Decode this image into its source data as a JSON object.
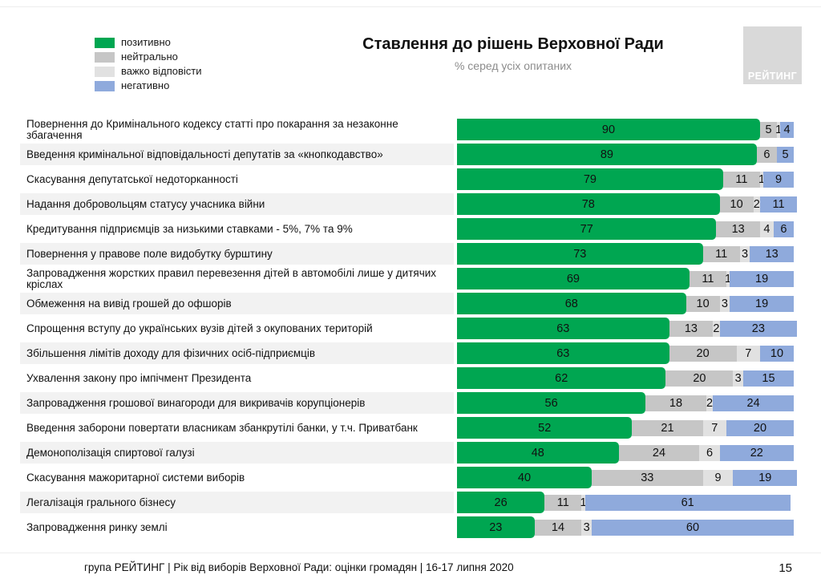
{
  "header": {
    "title": "Ставлення до рішень Верховної Ради",
    "subtitle": "% серед усіх опитаних",
    "logo_text": "РЕЙТИНГ"
  },
  "chart_data": {
    "type": "bar",
    "orientation": "horizontal",
    "stacked": true,
    "unit": "%",
    "xlim": [
      0,
      100
    ],
    "legend_position": "top-left",
    "categories": [
      "Повернення до Кримінального кодексу статті про покарання за незаконне збагачення",
      "Введення кримінальної відповідальності депутатів за «кнопкодавство»",
      "Скасування депутатської недоторканності",
      "Надання добровольцям статусу учасника війни",
      "Кредитування підприємців за низькими ставками - 5%, 7% та 9%",
      "Повернення у правове поле видобутку бурштину",
      "Запровадження жорстких правил перевезення дітей в автомобілі лише у дитячих кріслах",
      "Обмеження на вивід грошей до офшорів",
      "Спрощення вступу до українських вузів дітей з окупованих територій",
      "Збільшення лімітів доходу для фізичних осіб-підприємців",
      "Ухвалення закону про імпічмент Президента",
      "Запровадження грошової винагороди для викривачів корупціонерів",
      "Введення заборони повертати власникам збанкрутілі банки, у т.ч. Приватбанк",
      "Демонополізація спиртової галузі",
      "Скасування мажоритарної системи виборів",
      "Легалізація грального бізнесу",
      "Запровадження ринку землі"
    ],
    "series": [
      {
        "name": "позитивно",
        "color": "#00a651",
        "values": [
          90,
          89,
          79,
          78,
          77,
          73,
          69,
          68,
          63,
          63,
          62,
          56,
          52,
          48,
          40,
          26,
          23
        ]
      },
      {
        "name": "нейтрально",
        "color": "#c6c6c6",
        "values": [
          5,
          6,
          11,
          10,
          13,
          11,
          11,
          10,
          13,
          20,
          20,
          18,
          21,
          24,
          33,
          11,
          14
        ]
      },
      {
        "name": "важко відповісти",
        "color": "#e1e1e1",
        "values": [
          1,
          0,
          1,
          2,
          4,
          3,
          1,
          3,
          2,
          7,
          3,
          2,
          7,
          6,
          9,
          1,
          3
        ]
      },
      {
        "name": "негативно",
        "color": "#8faadc",
        "values": [
          4,
          5,
          9,
          11,
          6,
          13,
          19,
          19,
          23,
          10,
          15,
          24,
          20,
          22,
          19,
          61,
          60
        ]
      }
    ]
  },
  "footer": {
    "source_line": "група РЕЙТИНГ | Рік від виборів Верховної Ради: оцінки громадян | 16-17 липня 2020",
    "page_number": "15"
  }
}
